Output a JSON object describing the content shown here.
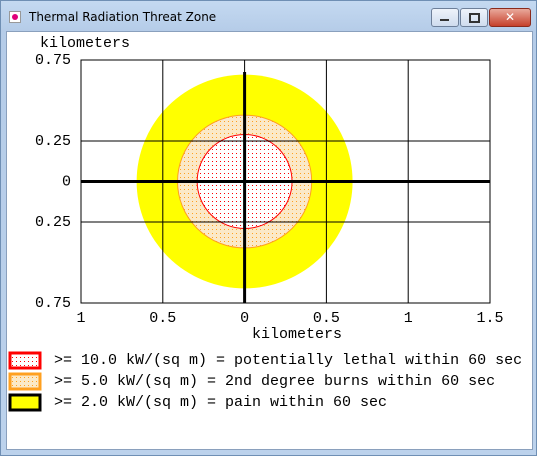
{
  "window": {
    "title": "Thermal Radiation Threat Zone"
  },
  "chart_data": {
    "type": "zone",
    "xlabel": "kilometers",
    "ylabel": "kilometers",
    "xlim": [
      -1,
      1.5
    ],
    "ylim": [
      -0.75,
      0.75
    ],
    "xticks": [
      {
        "value": -1,
        "label": "1"
      },
      {
        "value": -0.5,
        "label": "0.5"
      },
      0,
      0.5,
      1,
      1.5
    ],
    "yticks": [
      {
        "value": -0.75,
        "label": "0.75"
      },
      {
        "value": -0.25,
        "label": "0.25"
      },
      0,
      0.25,
      0.75
    ],
    "grid": true,
    "series": [
      {
        "name": ">= 10.0 kW/(sq m) = potentially lethal within 60 sec",
        "color": "#ff0000",
        "values": [
          0.29
        ]
      },
      {
        "name": ">= 5.0 kW/(sq m) = 2nd degree burns within 60 sec",
        "color": "#ffa020",
        "values": [
          0.41
        ]
      },
      {
        "name": ">= 2.0 kW/(sq m) = pain within 60 sec",
        "color": "#ffff00",
        "values": [
          0.66
        ]
      }
    ]
  }
}
